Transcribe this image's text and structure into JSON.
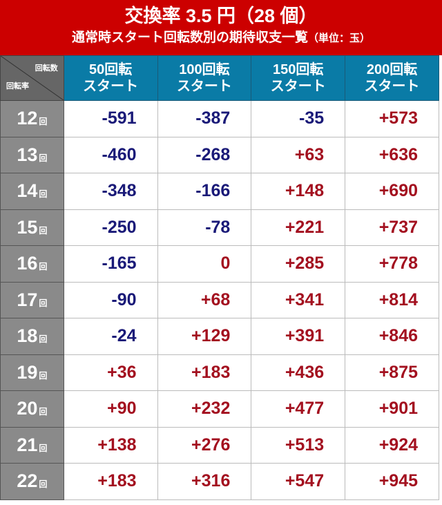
{
  "title": {
    "line1": "交換率 3.5 円（28 個）",
    "line2": "通常時スタート回転数別の期待収支一覧",
    "unit": "（単位：玉）"
  },
  "corner": {
    "top": "回転数",
    "bottom": "回転率"
  },
  "columns": [
    {
      "l1": "50回転",
      "l2": "スタート"
    },
    {
      "l1": "100回転",
      "l2": "スタート"
    },
    {
      "l1": "150回転",
      "l2": "スタート"
    },
    {
      "l1": "200回転",
      "l2": "スタート"
    }
  ],
  "row_unit": "回",
  "rows": [
    {
      "label": "12",
      "values": [
        "-591",
        "-387",
        "-35",
        "+573"
      ]
    },
    {
      "label": "13",
      "values": [
        "-460",
        "-268",
        "+63",
        "+636"
      ]
    },
    {
      "label": "14",
      "values": [
        "-348",
        "-166",
        "+148",
        "+690"
      ]
    },
    {
      "label": "15",
      "values": [
        "-250",
        "-78",
        "+221",
        "+737"
      ]
    },
    {
      "label": "16",
      "values": [
        "-165",
        "0",
        "+285",
        "+778"
      ]
    },
    {
      "label": "17",
      "values": [
        "-90",
        "+68",
        "+341",
        "+814"
      ]
    },
    {
      "label": "18",
      "values": [
        "-24",
        "+129",
        "+391",
        "+846"
      ]
    },
    {
      "label": "19",
      "values": [
        "+36",
        "+183",
        "+436",
        "+875"
      ]
    },
    {
      "label": "20",
      "values": [
        "+90",
        "+232",
        "+477",
        "+901"
      ]
    },
    {
      "label": "21",
      "values": [
        "+138",
        "+276",
        "+513",
        "+924"
      ]
    },
    {
      "label": "22",
      "values": [
        "+183",
        "+316",
        "+547",
        "+945"
      ]
    }
  ],
  "colors": {
    "title_bg": "#cc0000",
    "header_bg": "#0a7ba6",
    "negative": "#1a1a78",
    "positive": "#a3101f"
  }
}
